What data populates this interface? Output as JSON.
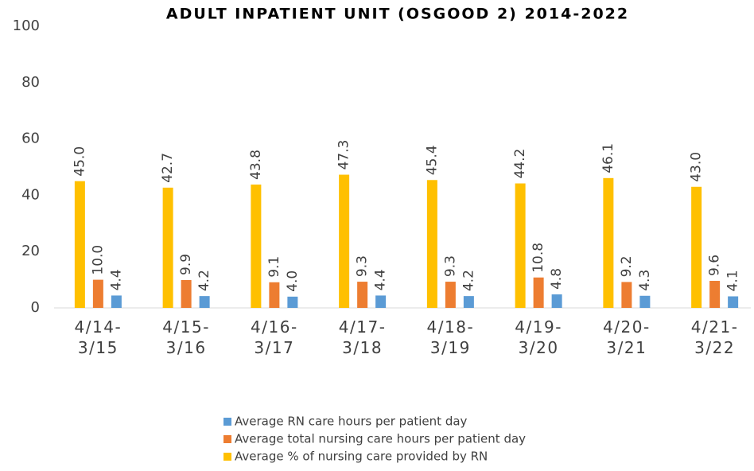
{
  "chart_data": {
    "type": "bar",
    "title": "ADULT INPATIENT UNIT (OSGOOD 2) 2014-2022",
    "categories": [
      "4/14-3/15",
      "4/15-3/16",
      "4/16-3/17",
      "4/17-3/18",
      "4/18-3/19",
      "4/19-3/20",
      "4/20-3/21",
      "4/21-3/22"
    ],
    "series": [
      {
        "name": "Average RN care hours per patient day",
        "color": "#5b9bd5",
        "values": [
          4.4,
          4.2,
          4.0,
          4.4,
          4.2,
          4.8,
          4.3,
          4.1
        ],
        "value_labels": [
          "4.4",
          "4.2",
          "4.0",
          "4.4",
          "4.2",
          "4.8",
          "4.3",
          "4.1"
        ]
      },
      {
        "name": "Average total nursing care hours per patient day",
        "color": "#ed7d31",
        "values": [
          10.0,
          9.9,
          9.1,
          9.3,
          9.3,
          10.8,
          9.2,
          9.6
        ],
        "value_labels": [
          "10.0",
          "9.9",
          "9.1",
          "9.3",
          "9.3",
          "10.8",
          "9.2",
          "9.6"
        ]
      },
      {
        "name": "Average % of nursing care provided by RN",
        "color": "#ffc000",
        "values": [
          45.0,
          42.7,
          43.8,
          47.3,
          45.4,
          44.2,
          46.1,
          43.0
        ],
        "value_labels": [
          "45.0",
          "42.7",
          "43.8",
          "47.3",
          "45.4",
          "44.2",
          "46.1",
          "43.0"
        ]
      }
    ],
    "ylim": [
      0,
      100
    ],
    "yticks": [
      0,
      20,
      40,
      60,
      80,
      100
    ],
    "grid": false,
    "legend": "bottom"
  }
}
